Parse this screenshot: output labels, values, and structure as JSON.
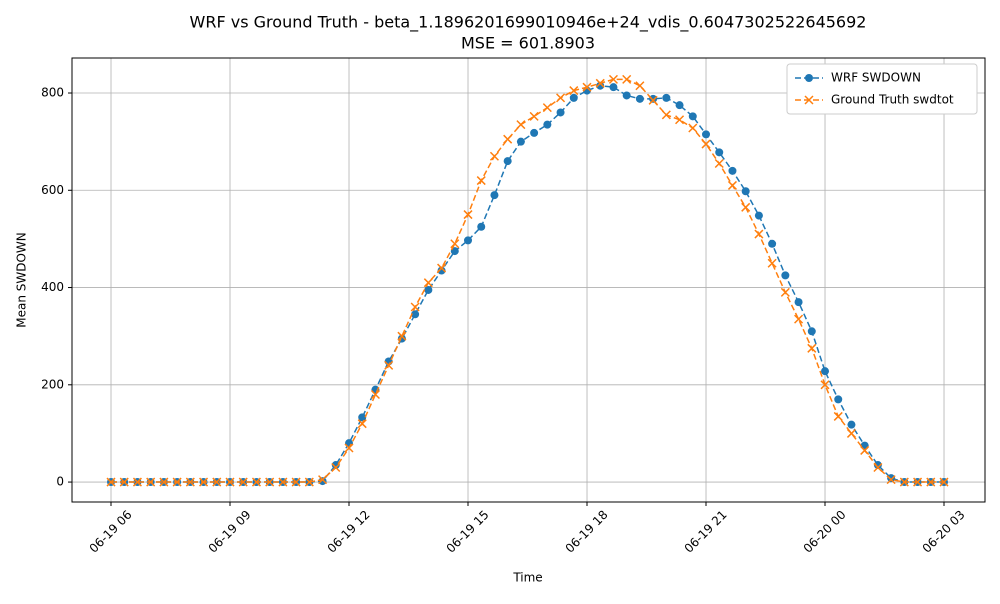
{
  "chart_data": {
    "type": "line",
    "title": "WRF vs Ground Truth - beta_1.1896201699010946e+24_vdis_0.6047302522645692",
    "subtitle": "MSE = 601.8903",
    "x_label": "Time",
    "y_label": "Mean SWDOWN",
    "x": [
      "06-19 06:00",
      "06-19 06:20",
      "06-19 06:40",
      "06-19 07:00",
      "06-19 07:20",
      "06-19 07:40",
      "06-19 08:00",
      "06-19 08:20",
      "06-19 08:40",
      "06-19 09:00",
      "06-19 09:20",
      "06-19 09:40",
      "06-19 10:00",
      "06-19 10:20",
      "06-19 10:40",
      "06-19 11:00",
      "06-19 11:20",
      "06-19 11:40",
      "06-19 12:00",
      "06-19 12:20",
      "06-19 12:40",
      "06-19 13:00",
      "06-19 13:20",
      "06-19 13:40",
      "06-19 14:00",
      "06-19 14:20",
      "06-19 14:40",
      "06-19 15:00",
      "06-19 15:20",
      "06-19 15:40",
      "06-19 16:00",
      "06-19 16:20",
      "06-19 16:40",
      "06-19 17:00",
      "06-19 17:20",
      "06-19 17:40",
      "06-19 18:00",
      "06-19 18:20",
      "06-19 18:40",
      "06-19 19:00",
      "06-19 19:20",
      "06-19 19:40",
      "06-19 20:00",
      "06-19 20:20",
      "06-19 20:40",
      "06-19 21:00",
      "06-19 21:20",
      "06-19 21:40",
      "06-19 22:00",
      "06-19 22:20",
      "06-19 22:40",
      "06-19 23:00",
      "06-19 23:20",
      "06-19 23:40",
      "06-20 00:00",
      "06-20 00:20",
      "06-20 00:40",
      "06-20 01:00",
      "06-20 01:20",
      "06-20 01:40",
      "06-20 02:00",
      "06-20 02:20",
      "06-20 02:40",
      "06-20 03:00"
    ],
    "series": [
      {
        "name": "WRF SWDOWN",
        "color": "#1f77b4",
        "marker": "circle",
        "values": [
          0,
          0,
          0,
          0,
          0,
          0,
          0,
          0,
          0,
          0,
          0,
          0,
          0,
          0,
          0,
          0,
          2,
          35,
          80,
          133,
          190,
          248,
          295,
          345,
          395,
          435,
          475,
          497,
          525,
          590,
          660,
          700,
          718,
          735,
          760,
          790,
          805,
          815,
          812,
          795,
          788,
          788,
          790,
          775,
          752,
          715,
          678,
          640,
          598,
          548,
          490,
          425,
          370,
          310,
          228,
          170,
          118,
          75,
          35,
          8,
          0,
          0,
          0,
          0
        ]
      },
      {
        "name": "Ground Truth swdtot",
        "color": "#ff7f0e",
        "marker": "x",
        "values": [
          0,
          0,
          0,
          0,
          0,
          0,
          0,
          0,
          0,
          0,
          0,
          0,
          0,
          0,
          0,
          0,
          5,
          30,
          70,
          120,
          180,
          240,
          300,
          360,
          410,
          440,
          490,
          550,
          620,
          670,
          705,
          735,
          752,
          770,
          790,
          805,
          812,
          820,
          828,
          828,
          815,
          785,
          755,
          745,
          728,
          695,
          655,
          610,
          565,
          510,
          450,
          390,
          335,
          275,
          200,
          135,
          100,
          65,
          30,
          5,
          0,
          0,
          0,
          0
        ]
      }
    ],
    "xlim": [
      "06-19 05:01",
      "06-20 04:02"
    ],
    "xticks": [
      {
        "value": "06-19 06:00",
        "label": "06-19 06"
      },
      {
        "value": "06-19 09:00",
        "label": "06-19 09"
      },
      {
        "value": "06-19 12:00",
        "label": "06-19 12"
      },
      {
        "value": "06-19 15:00",
        "label": "06-19 15"
      },
      {
        "value": "06-19 18:00",
        "label": "06-19 18"
      },
      {
        "value": "06-19 21:00",
        "label": "06-19 21"
      },
      {
        "value": "06-20 00:00",
        "label": "06-20 00"
      },
      {
        "value": "06-20 03:00",
        "label": "06-20 03"
      }
    ],
    "ylim": [
      -41,
      872
    ],
    "yticks": [
      0,
      200,
      400,
      600,
      800
    ],
    "grid": true,
    "legend": "upper right"
  }
}
